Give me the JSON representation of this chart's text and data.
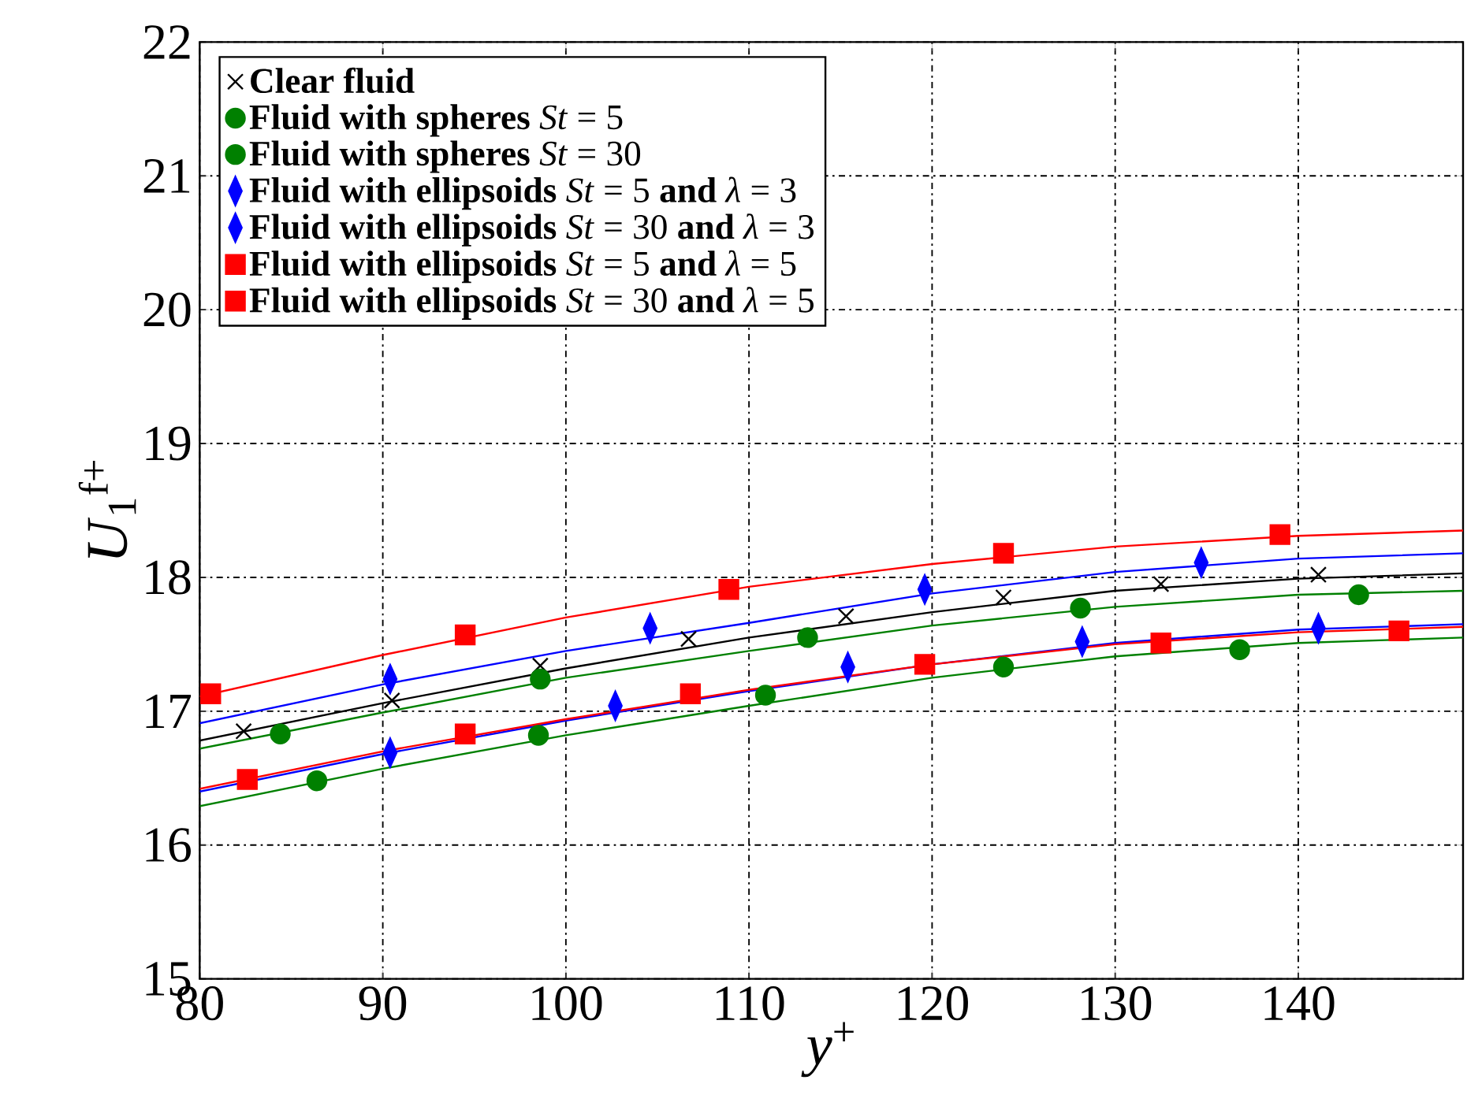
{
  "chart_data": {
    "type": "scatter",
    "xlabel": "*y*$^{+}$",
    "ylabel": "*U*$_{1}$$^{f+}$",
    "xlim": [
      80,
      149
    ],
    "ylim": [
      15,
      22
    ],
    "xticks": [
      80,
      90,
      100,
      110,
      120,
      130,
      140
    ],
    "yticks": [
      15,
      16,
      17,
      18,
      19,
      20,
      21,
      22
    ],
    "grid": true,
    "legend": "top left",
    "series": [
      {
        "name": "**Clear fluid**",
        "marker": "cross",
        "color": "#000000",
        "x": [
          82.4,
          90.5,
          98.6,
          106.7,
          115.3,
          123.9,
          132.5,
          141.1
        ],
        "values": [
          16.85,
          17.08,
          17.34,
          17.54,
          17.71,
          17.85,
          17.95,
          18.02
        ]
      },
      {
        "name": "**Fluid with spheres** *St* = 5",
        "marker": "circle",
        "color": "#008000",
        "x": [
          86.4,
          98.5,
          110.9,
          123.9,
          136.8
        ],
        "values": [
          16.48,
          16.82,
          17.12,
          17.33,
          17.46
        ]
      },
      {
        "name": "**Fluid with spheres** *St* = 30",
        "marker": "circle",
        "color": "#008000",
        "x": [
          84.4,
          98.6,
          113.2,
          128.1,
          143.3
        ],
        "values": [
          16.83,
          17.24,
          17.55,
          17.77,
          17.87
        ]
      },
      {
        "name": "**Fluid with ellipsoids** *St* = 5 **and** *λ* = 3",
        "marker": "diamond",
        "color": "#0000ff",
        "x": [
          90.4,
          102.7,
          115.4,
          128.2,
          141.1
        ],
        "values": [
          16.69,
          17.04,
          17.33,
          17.52,
          17.62
        ]
      },
      {
        "name": "**Fluid with ellipsoids** *St* = 30 **and** *λ* = 3",
        "marker": "diamond",
        "color": "#0000ff",
        "x": [
          90.4,
          104.6,
          119.6,
          134.7
        ],
        "values": [
          17.24,
          17.62,
          17.91,
          18.11
        ]
      },
      {
        "name": "**Fluid with ellipsoids** *St* = 5 **and** *λ* = 5",
        "marker": "square",
        "color": "#ff0000",
        "x": [
          82.6,
          94.5,
          106.8,
          119.6,
          132.5,
          145.5
        ],
        "values": [
          16.49,
          16.83,
          17.13,
          17.35,
          17.51,
          17.6
        ]
      },
      {
        "name": "**Fluid with ellipsoids** *St* = 30 **and** *λ* = 5",
        "marker": "square",
        "color": "#ff0000",
        "x": [
          80.6,
          94.5,
          108.9,
          123.9,
          139.0
        ],
        "values": [
          17.13,
          17.57,
          17.91,
          18.18,
          18.32
        ]
      },
      {
        "type": "line",
        "color": "#000000",
        "x": [
          80,
          90,
          100,
          110,
          120,
          130,
          140,
          149
        ],
        "values": [
          16.78,
          17.06,
          17.32,
          17.55,
          17.74,
          17.9,
          17.99,
          18.03
        ]
      },
      {
        "type": "line",
        "color": "#008000",
        "x": [
          80,
          90,
          100,
          110,
          120,
          130,
          140,
          149
        ],
        "values": [
          16.29,
          16.57,
          16.82,
          17.04,
          17.25,
          17.41,
          17.51,
          17.55
        ]
      },
      {
        "type": "line",
        "color": "#008000",
        "x": [
          80,
          90,
          100,
          110,
          120,
          130,
          140,
          149
        ],
        "values": [
          16.72,
          16.99,
          17.25,
          17.45,
          17.64,
          17.78,
          17.87,
          17.9
        ]
      },
      {
        "type": "line",
        "color": "#0000ff",
        "x": [
          80,
          90,
          100,
          110,
          120,
          130,
          140,
          149
        ],
        "values": [
          16.4,
          16.68,
          16.93,
          17.15,
          17.35,
          17.51,
          17.61,
          17.65
        ]
      },
      {
        "type": "line",
        "color": "#0000ff",
        "x": [
          80,
          90,
          100,
          110,
          120,
          130,
          140,
          149
        ],
        "values": [
          16.91,
          17.2,
          17.45,
          17.66,
          17.88,
          18.04,
          18.14,
          18.18
        ]
      },
      {
        "type": "line",
        "color": "#ff0000",
        "x": [
          80,
          90,
          100,
          110,
          120,
          130,
          140,
          149
        ],
        "values": [
          16.42,
          16.7,
          16.94,
          17.16,
          17.35,
          17.5,
          17.59,
          17.63
        ]
      },
      {
        "type": "line",
        "color": "#ff0000",
        "x": [
          80,
          90,
          100,
          110,
          120,
          130,
          140,
          149
        ],
        "values": [
          17.11,
          17.42,
          17.7,
          17.93,
          18.1,
          18.23,
          18.31,
          18.35
        ]
      }
    ]
  }
}
